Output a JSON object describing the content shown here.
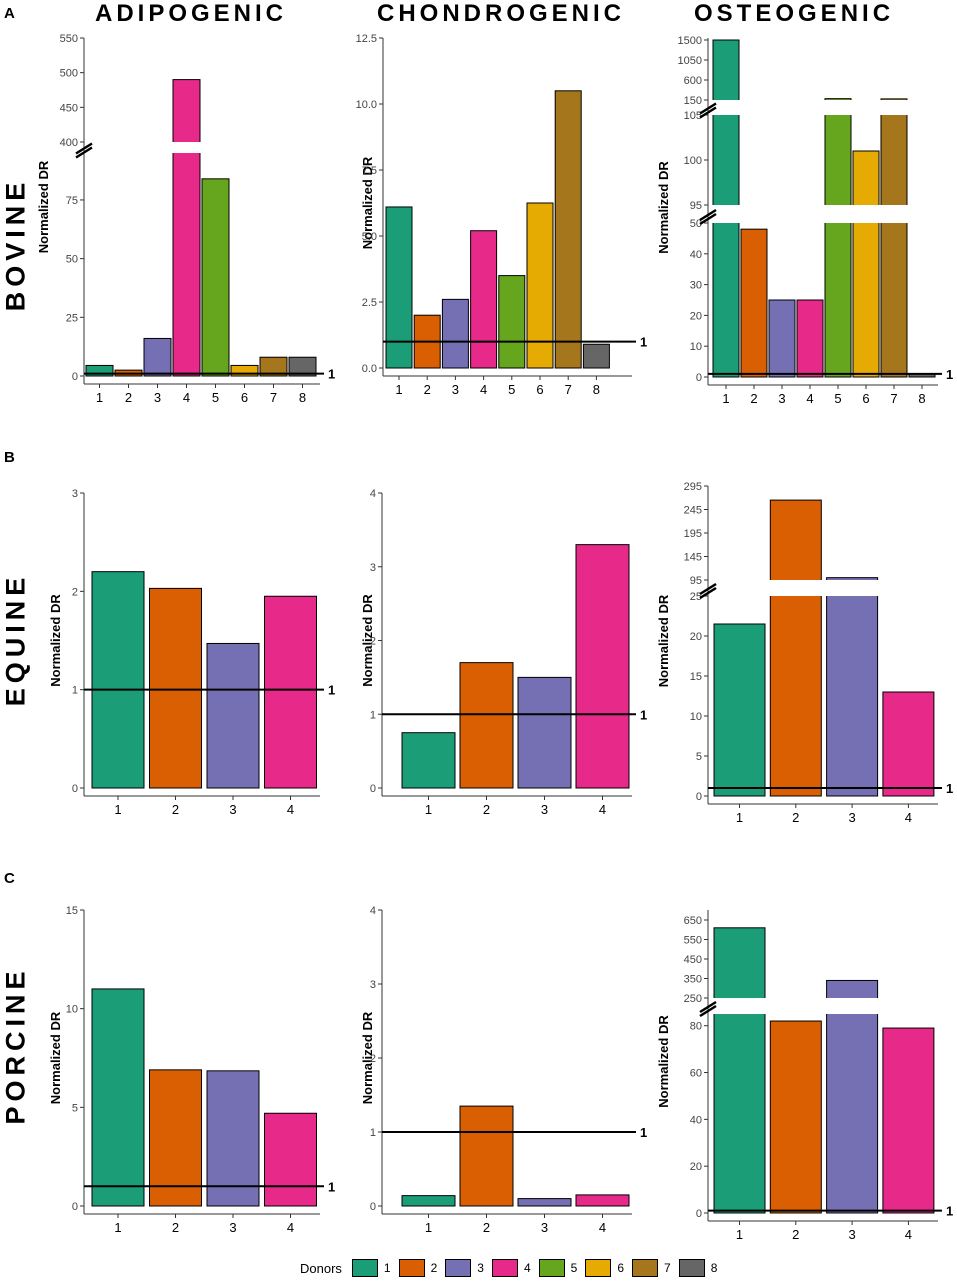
{
  "column_titles": [
    "ADIPOGENIC",
    "CHONDROGENIC",
    "OSTEOGENIC"
  ],
  "row_letters": [
    "A",
    "B",
    "C"
  ],
  "species": [
    "BOVINE",
    "EQUINE",
    "PORCINE"
  ],
  "legend": {
    "title": "Donors",
    "items": [
      {
        "label": "1",
        "color": "#1b9e77"
      },
      {
        "label": "2",
        "color": "#d95f02"
      },
      {
        "label": "3",
        "color": "#7570b3"
      },
      {
        "label": "4",
        "color": "#e7298a"
      },
      {
        "label": "5",
        "color": "#66a61e"
      },
      {
        "label": "6",
        "color": "#e6ab02"
      },
      {
        "label": "7",
        "color": "#a6761d"
      },
      {
        "label": "8",
        "color": "#666666"
      }
    ]
  },
  "chart_data": [
    {
      "id": "bovine-adipogenic",
      "type": "bar",
      "ylabel": "Normalized DR",
      "categories": [
        "1",
        "2",
        "3",
        "4",
        "5",
        "6",
        "7",
        "8"
      ],
      "values": [
        4.5,
        2.5,
        16,
        490,
        84,
        4.5,
        8,
        8
      ],
      "reference_line": 1,
      "reference_label": "1",
      "y_segments": [
        {
          "range": [
            0,
            95
          ],
          "ticks": [
            "0",
            "25",
            "50",
            "75"
          ]
        },
        {
          "range": [
            400,
            550
          ],
          "ticks": [
            "400",
            "450",
            "500",
            "550"
          ]
        }
      ]
    },
    {
      "id": "bovine-chondrogenic",
      "type": "bar",
      "ylabel": "Normalized DR",
      "categories": [
        "1",
        "2",
        "3",
        "4",
        "5",
        "6",
        "7",
        "8"
      ],
      "values": [
        6.1,
        2.0,
        2.6,
        5.2,
        3.5,
        6.25,
        10.5,
        0.9
      ],
      "reference_line": 1,
      "reference_label": "1",
      "y_segments": [
        {
          "range": [
            0,
            12.5
          ],
          "ticks": [
            "0.0",
            "2.5",
            "5.0",
            "7.5",
            "10.0",
            "12.5"
          ]
        }
      ]
    },
    {
      "id": "bovine-osteogenic",
      "type": "bar",
      "ylabel": "Normalized DR",
      "categories": [
        "1",
        "2",
        "3",
        "4",
        "5",
        "6",
        "7",
        "8"
      ],
      "values": [
        1500,
        48,
        25,
        25,
        180,
        101,
        175,
        1
      ],
      "reference_line": 1,
      "reference_label": "1",
      "y_segments": [
        {
          "range": [
            0,
            50
          ],
          "ticks": [
            "0",
            "10",
            "20",
            "30",
            "40",
            "50"
          ]
        },
        {
          "range": [
            95,
            105
          ],
          "ticks": [
            "95",
            "100",
            "105"
          ]
        },
        {
          "range": [
            150,
            1500
          ],
          "ticks": [
            "150",
            "600",
            "1050",
            "1500"
          ]
        }
      ]
    },
    {
      "id": "equine-adipogenic",
      "type": "bar",
      "ylabel": "Normalized DR",
      "categories": [
        "1",
        "2",
        "3",
        "4"
      ],
      "values": [
        2.2,
        2.03,
        1.47,
        1.95
      ],
      "reference_line": 1,
      "reference_label": "1",
      "y_segments": [
        {
          "range": [
            0,
            3
          ],
          "ticks": [
            "0",
            "1",
            "2",
            "3"
          ]
        }
      ]
    },
    {
      "id": "equine-chondrogenic",
      "type": "bar",
      "ylabel": "Normalized DR",
      "categories": [
        "1",
        "2",
        "3",
        "4"
      ],
      "values": [
        0.75,
        1.7,
        1.5,
        3.3
      ],
      "reference_line": 1,
      "reference_label": "1",
      "y_segments": [
        {
          "range": [
            0,
            4
          ],
          "ticks": [
            "0",
            "1",
            "2",
            "3",
            "4"
          ]
        }
      ]
    },
    {
      "id": "equine-osteogenic",
      "type": "bar",
      "ylabel": "Normalized DR",
      "categories": [
        "1",
        "2",
        "3",
        "4"
      ],
      "values": [
        21.5,
        265,
        100,
        13
      ],
      "reference_line": 1,
      "reference_label": "1",
      "y_segments": [
        {
          "range": [
            0,
            25
          ],
          "ticks": [
            "0",
            "5",
            "10",
            "15",
            "20",
            "25"
          ]
        },
        {
          "range": [
            95,
            295
          ],
          "ticks": [
            "95",
            "145",
            "195",
            "245",
            "295"
          ]
        }
      ]
    },
    {
      "id": "porcine-adipogenic",
      "type": "bar",
      "ylabel": "Normalized DR",
      "categories": [
        "1",
        "2",
        "3",
        "4"
      ],
      "values": [
        11,
        6.9,
        6.85,
        4.7
      ],
      "reference_line": 1,
      "reference_label": "1",
      "y_segments": [
        {
          "range": [
            0,
            15
          ],
          "ticks": [
            "0",
            "5",
            "10",
            "15"
          ]
        }
      ]
    },
    {
      "id": "porcine-chondrogenic",
      "type": "bar",
      "ylabel": "Normalized DR",
      "categories": [
        "1",
        "2",
        "3",
        "4"
      ],
      "values": [
        0.14,
        1.35,
        0.1,
        0.15
      ],
      "reference_line": 1,
      "reference_label": "1",
      "y_segments": [
        {
          "range": [
            0,
            4
          ],
          "ticks": [
            "0",
            "1",
            "2",
            "3",
            "4"
          ]
        }
      ]
    },
    {
      "id": "porcine-osteogenic",
      "type": "bar",
      "ylabel": "Normalized DR",
      "categories": [
        "1",
        "2",
        "3",
        "4"
      ],
      "values": [
        610,
        82,
        340,
        79
      ],
      "reference_line": 1,
      "reference_label": "1",
      "y_segments": [
        {
          "range": [
            0,
            85
          ],
          "ticks": [
            "0",
            "20",
            "40",
            "60",
            "80"
          ]
        },
        {
          "range": [
            250,
            650
          ],
          "ticks": [
            "250",
            "350",
            "450",
            "550",
            "650"
          ]
        }
      ]
    }
  ]
}
